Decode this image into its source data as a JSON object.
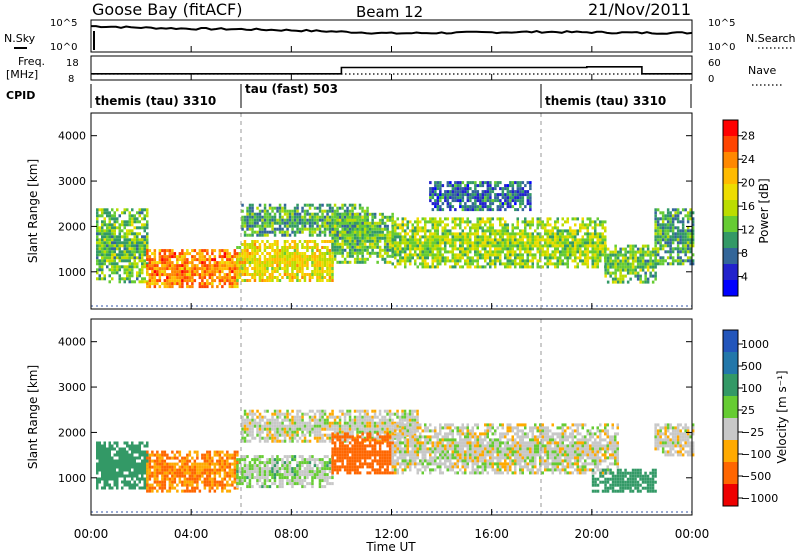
{
  "header": {
    "station": "Goose Bay (fitACF)",
    "beam": "Beam 12",
    "date": "21/Nov/2011"
  },
  "strip_labels": {
    "nsky": "N.Sky",
    "nsearch": "N.Search",
    "freq_line1": "Freq.",
    "freq_line2": "[MHz]",
    "nave": "Nave",
    "cpid": "CPID",
    "noise_left_ticks": [
      "10^5",
      "10^0"
    ],
    "noise_right_ticks": [
      "10^5",
      "10^0"
    ],
    "freq_ticks": [
      "18",
      "8"
    ],
    "nave_ticks": [
      "60",
      "0"
    ]
  },
  "cpid_segments": [
    {
      "label": "themis (tau) 3310",
      "start_hr": 0
    },
    {
      "label": "tau (fast) 503",
      "start_hr": 6.0
    },
    {
      "label": "themis (tau) 3310",
      "start_hr": 18.0
    }
  ],
  "colorbars": {
    "power": {
      "label": "Power [dB]",
      "ticks": [
        "28",
        "24",
        "20",
        "16",
        "12",
        "8",
        "4"
      ],
      "colors": [
        "#ff0000",
        "#ff4400",
        "#ff8800",
        "#ffbb00",
        "#eedd00",
        "#bbdd00",
        "#66cc33",
        "#339966",
        "#336699",
        "#2222cc",
        "#0000ff"
      ]
    },
    "velocity": {
      "label": "Velocity [m s⁻¹]",
      "ticks": [
        "1000",
        "500",
        "100",
        "25",
        "−25",
        "−100",
        "−500",
        "−1000"
      ],
      "colors": [
        "#2255bb",
        "#2277aa",
        "#339966",
        "#66cc33",
        "#c8c8c8",
        "#ffaa00",
        "#ff6600",
        "#ee0000"
      ]
    }
  },
  "chart_data": [
    {
      "type": "heatmap",
      "title": "Power",
      "ylabel": "Slant Range [km]",
      "xlabel": "Time UT",
      "x_ticks": [
        "00:00",
        "04:00",
        "08:00",
        "12:00",
        "16:00",
        "20:00",
        "00:00"
      ],
      "y_ticks": [
        "1000",
        "2000",
        "3000",
        "4000"
      ],
      "xlim_hours": [
        0,
        24
      ],
      "ylim_km": [
        180,
        4500
      ],
      "colorbar_range_db": [
        0,
        30
      ],
      "echo_regions": [
        {
          "t0": 0.2,
          "t1": 2.2,
          "r0": 800,
          "r1": 2400,
          "value": 12
        },
        {
          "t0": 2.2,
          "t1": 5.8,
          "r0": 700,
          "r1": 1500,
          "value": 24
        },
        {
          "t0": 5.8,
          "t1": 9.6,
          "r0": 800,
          "r1": 1700,
          "value": 18
        },
        {
          "t0": 6.0,
          "t1": 11.0,
          "r0": 1800,
          "r1": 2500,
          "value": 10
        },
        {
          "t0": 9.6,
          "t1": 12.0,
          "r0": 1200,
          "r1": 2300,
          "value": 12
        },
        {
          "t0": 12.0,
          "t1": 20.5,
          "r0": 1100,
          "r1": 2200,
          "value": 14
        },
        {
          "t0": 13.5,
          "t1": 17.5,
          "r0": 2400,
          "r1": 3000,
          "value": 6
        },
        {
          "t0": 20.5,
          "t1": 22.5,
          "r0": 800,
          "r1": 1600,
          "value": 12
        },
        {
          "t0": 22.5,
          "t1": 24.0,
          "r0": 1200,
          "r1": 2400,
          "value": 10
        }
      ]
    },
    {
      "type": "heatmap",
      "title": "Velocity",
      "ylabel": "Slant Range [km]",
      "xlabel": "Time UT",
      "x_ticks": [
        "00:00",
        "04:00",
        "08:00",
        "12:00",
        "16:00",
        "20:00",
        "00:00"
      ],
      "y_ticks": [
        "1000",
        "2000",
        "3000",
        "4000"
      ],
      "xlim_hours": [
        0,
        24
      ],
      "ylim_km": [
        180,
        4500
      ],
      "echo_regions": [
        {
          "t0": 0.2,
          "t1": 2.2,
          "r0": 800,
          "r1": 1800,
          "value": 100
        },
        {
          "t0": 2.2,
          "t1": 5.8,
          "r0": 700,
          "r1": 1600,
          "value": -100
        },
        {
          "t0": 5.8,
          "t1": 9.6,
          "r0": 800,
          "r1": 1500,
          "value": 25
        },
        {
          "t0": 6.0,
          "t1": 13.0,
          "r0": 1800,
          "r1": 2500,
          "value": 0
        },
        {
          "t0": 9.6,
          "t1": 12.0,
          "r0": 1100,
          "r1": 2000,
          "value": -200
        },
        {
          "t0": 12.0,
          "t1": 21.0,
          "r0": 1100,
          "r1": 2200,
          "value": 0
        },
        {
          "t0": 20.0,
          "t1": 22.5,
          "r0": 700,
          "r1": 1200,
          "value": 100
        },
        {
          "t0": 22.5,
          "t1": 24.0,
          "r0": 1500,
          "r1": 2200,
          "value": 0
        }
      ]
    },
    {
      "type": "line",
      "title": "N.Sky",
      "x_hours": [
        0,
        2,
        4,
        6,
        8,
        10,
        12,
        14,
        16,
        18,
        20,
        22,
        24
      ],
      "series": [
        {
          "values_log10": [
            4.6,
            4.3,
            4.1,
            4.0,
            3.8,
            3.5,
            3.2,
            3.3,
            3.4,
            3.5,
            3.4,
            3.3,
            3.3
          ]
        }
      ]
    },
    {
      "type": "line",
      "title": "Freq.",
      "x_hours": [
        0,
        10,
        10,
        19.8,
        19.8,
        22.0,
        22.0,
        24
      ],
      "series": [
        {
          "values": [
            10.5,
            10.5,
            13.5,
            13.5,
            13.8,
            13.8,
            10.5,
            10.5
          ]
        }
      ]
    },
    {
      "type": "line",
      "title": "Nave",
      "x_hours": [
        0,
        24
      ],
      "series": [
        {
          "values": [
            18,
            18
          ]
        }
      ]
    }
  ]
}
